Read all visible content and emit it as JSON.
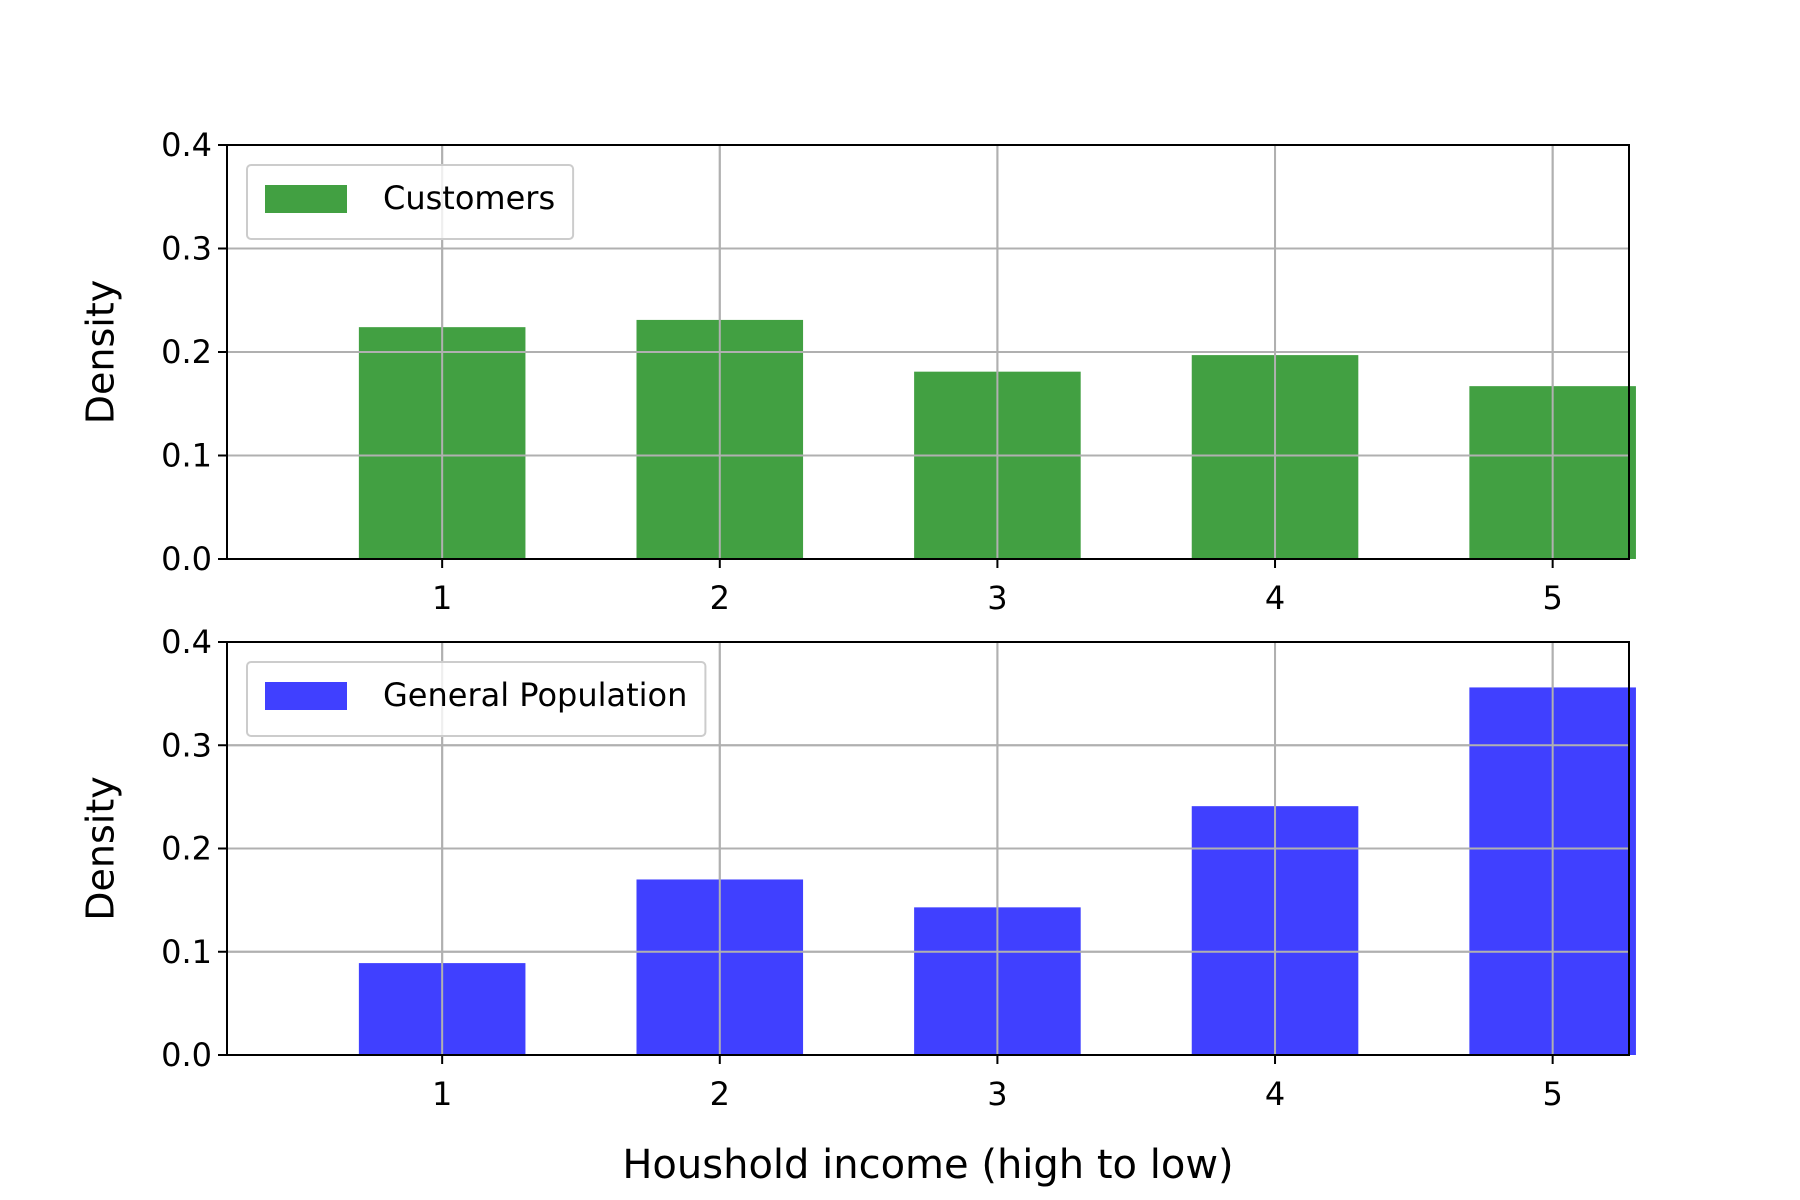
{
  "chart_data": [
    {
      "type": "bar",
      "categories": [
        "1",
        "2",
        "3",
        "4",
        "5"
      ],
      "series": [
        {
          "name": "Customers",
          "values": [
            0.224,
            0.231,
            0.181,
            0.197,
            0.167
          ],
          "color": "#42a042"
        }
      ],
      "xlabel": "",
      "ylabel": "Density",
      "ylim": [
        0,
        0.4
      ],
      "yticks": [
        "0.0",
        "0.1",
        "0.2",
        "0.3",
        "0.4"
      ],
      "grid": true,
      "legend": "top-left"
    },
    {
      "type": "bar",
      "categories": [
        "1",
        "2",
        "3",
        "4",
        "5"
      ],
      "series": [
        {
          "name": "General Population",
          "values": [
            0.089,
            0.17,
            0.143,
            0.241,
            0.356
          ],
          "color": "#4040ff"
        }
      ],
      "xlabel": "Houshold income (high to low)",
      "ylabel": "Density",
      "ylim": [
        0,
        0.4
      ],
      "yticks": [
        "0.0",
        "0.1",
        "0.2",
        "0.3",
        "0.4"
      ],
      "grid": true,
      "legend": "top-left"
    }
  ]
}
